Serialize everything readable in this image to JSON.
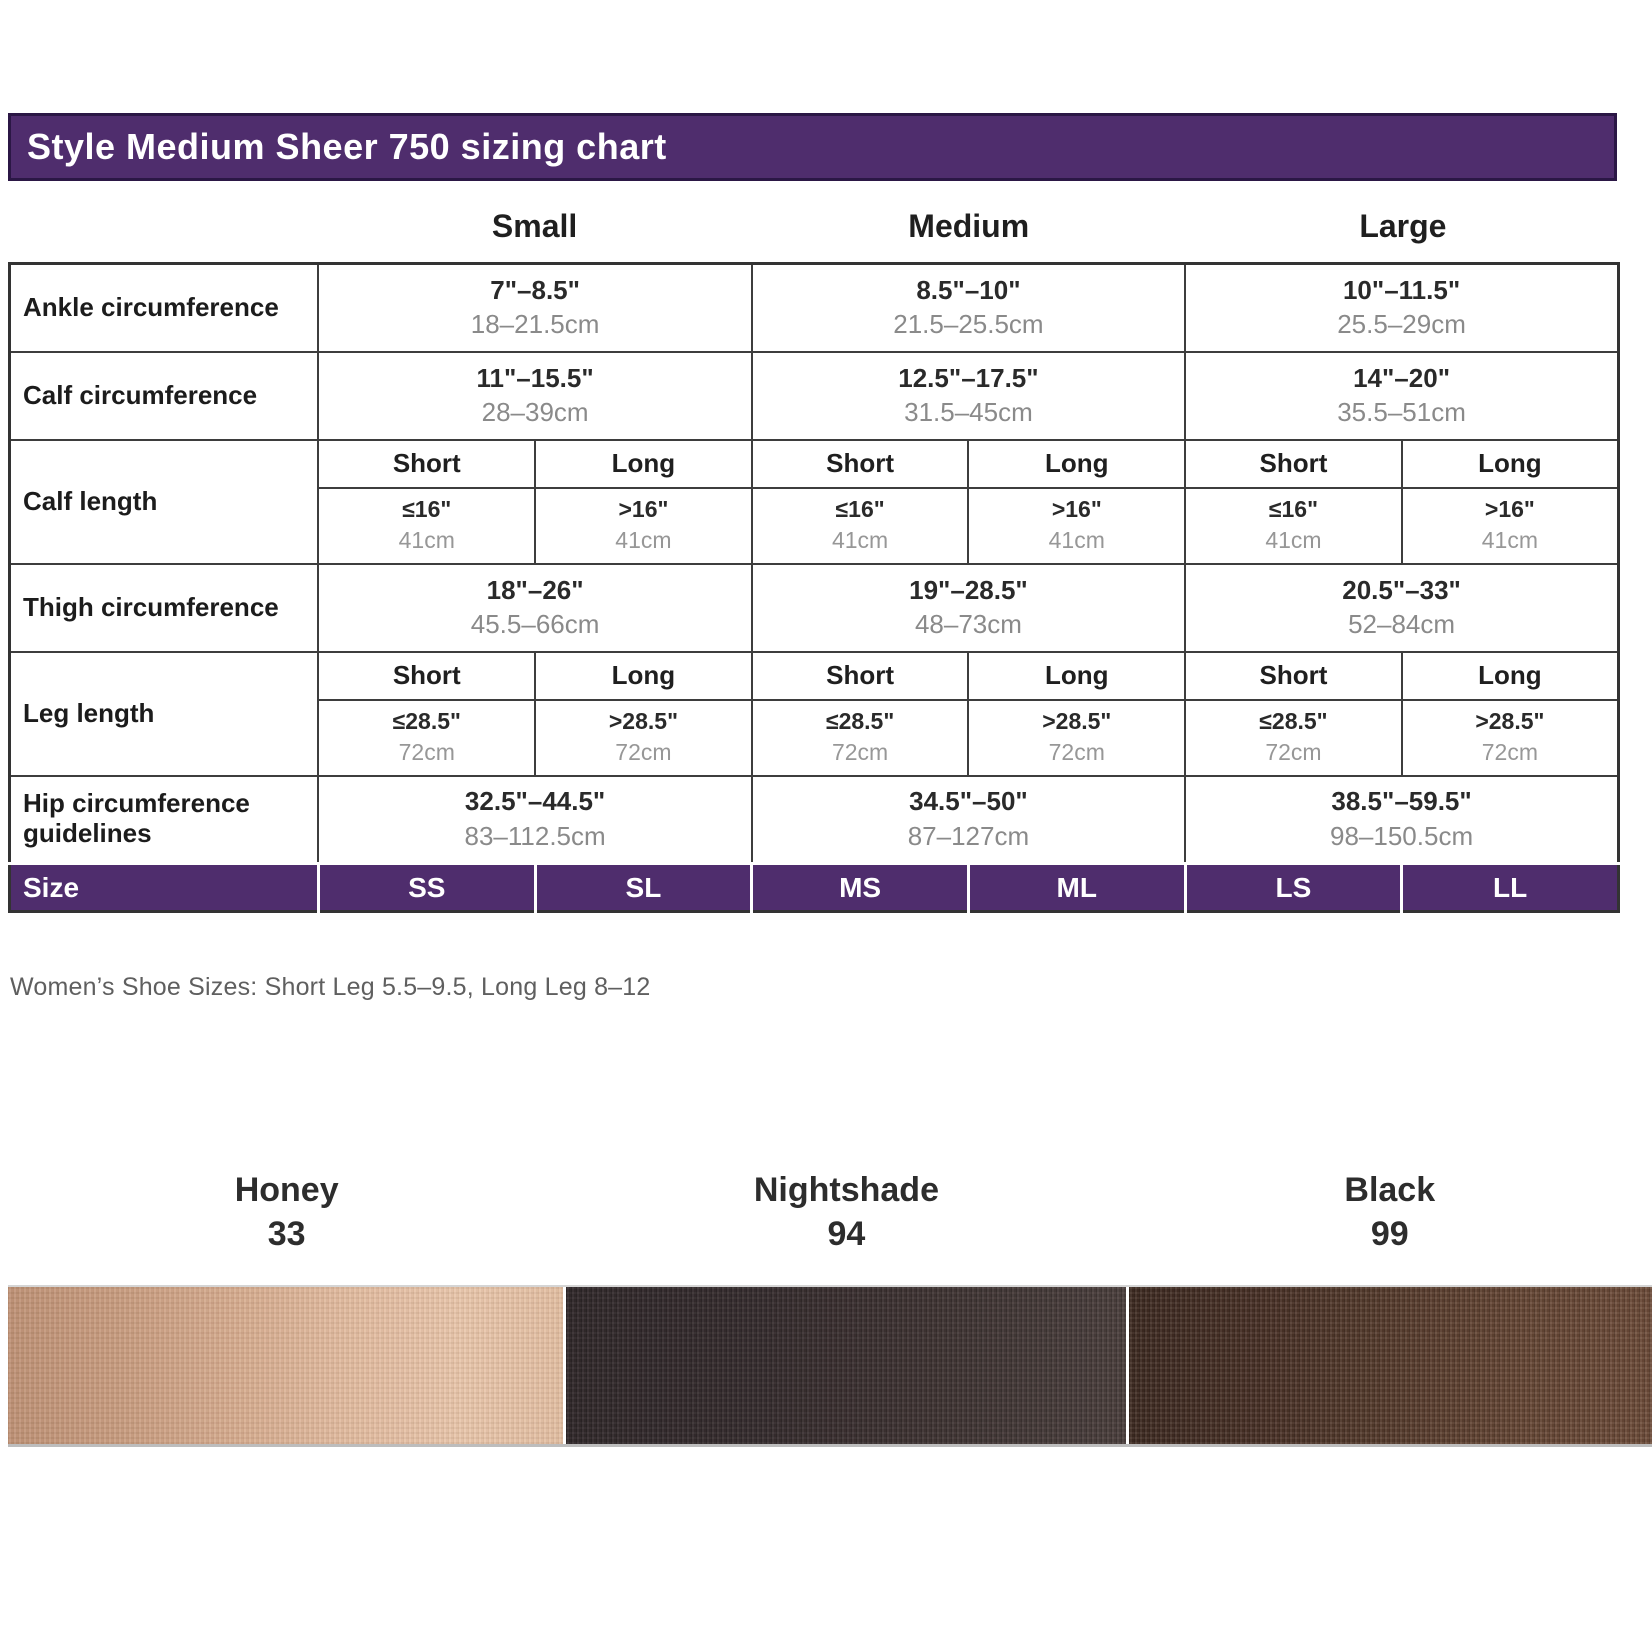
{
  "title": "Style Medium Sheer 750 sizing chart",
  "group_headers": [
    "Small",
    "Medium",
    "Large"
  ],
  "rows": {
    "ankle": {
      "label": "Ankle circumference",
      "cells": [
        {
          "inch": "7\"–8.5\"",
          "cm": "18–21.5cm"
        },
        {
          "inch": "8.5\"–10\"",
          "cm": "21.5–25.5cm"
        },
        {
          "inch": "10\"–11.5\"",
          "cm": "25.5–29cm"
        }
      ]
    },
    "calf_circumference": {
      "label": "Calf circumference",
      "cells": [
        {
          "inch": "11\"–15.5\"",
          "cm": "28–39cm"
        },
        {
          "inch": "12.5\"–17.5\"",
          "cm": "31.5–45cm"
        },
        {
          "inch": "14\"–20\"",
          "cm": "35.5–51cm"
        }
      ]
    },
    "calf_length": {
      "label": "Calf length",
      "sub_headers": [
        "Short",
        "Long",
        "Short",
        "Long",
        "Short",
        "Long"
      ],
      "cells": [
        {
          "inch": "≤16\"",
          "cm": "41cm"
        },
        {
          "inch": ">16\"",
          "cm": "41cm"
        },
        {
          "inch": "≤16\"",
          "cm": "41cm"
        },
        {
          "inch": ">16\"",
          "cm": "41cm"
        },
        {
          "inch": "≤16\"",
          "cm": "41cm"
        },
        {
          "inch": ">16\"",
          "cm": "41cm"
        }
      ]
    },
    "thigh": {
      "label": "Thigh circumference",
      "cells": [
        {
          "inch": "18\"–26\"",
          "cm": "45.5–66cm"
        },
        {
          "inch": "19\"–28.5\"",
          "cm": "48–73cm"
        },
        {
          "inch": "20.5\"–33\"",
          "cm": "52–84cm"
        }
      ]
    },
    "leg_length": {
      "label": "Leg length",
      "sub_headers": [
        "Short",
        "Long",
        "Short",
        "Long",
        "Short",
        "Long"
      ],
      "cells": [
        {
          "inch": "≤28.5\"",
          "cm": "72cm"
        },
        {
          "inch": ">28.5\"",
          "cm": "72cm"
        },
        {
          "inch": "≤28.5\"",
          "cm": "72cm"
        },
        {
          "inch": ">28.5\"",
          "cm": "72cm"
        },
        {
          "inch": "≤28.5\"",
          "cm": "72cm"
        },
        {
          "inch": ">28.5\"",
          "cm": "72cm"
        }
      ]
    },
    "hip": {
      "label": "Hip circumference guidelines",
      "cells": [
        {
          "inch": "32.5\"–44.5\"",
          "cm": "83–112.5cm"
        },
        {
          "inch": "34.5\"–50\"",
          "cm": "87–127cm"
        },
        {
          "inch": "38.5\"–59.5\"",
          "cm": "98–150.5cm"
        }
      ]
    },
    "size": {
      "label": "Size",
      "values": [
        "SS",
        "SL",
        "MS",
        "ML",
        "LS",
        "LL"
      ]
    }
  },
  "footnote": "Women’s Shoe Sizes: Short Leg 5.5–9.5, Long Leg 8–12",
  "colorways": [
    {
      "name": "Honey",
      "code": "33",
      "color_left": "#bf9276",
      "color_right": "#e9c6ab"
    },
    {
      "name": "Nightshade",
      "code": "94",
      "color_left": "#342b2d",
      "color_right": "#4e4240"
    },
    {
      "name": "Black",
      "code": "99",
      "color_left": "#3f2b22",
      "color_right": "#6f4d3a"
    }
  ],
  "theme": {
    "accent_purple": "#4f2d6d",
    "table_border": "#3d3d3d",
    "muted_text": "#8a8a8a"
  }
}
